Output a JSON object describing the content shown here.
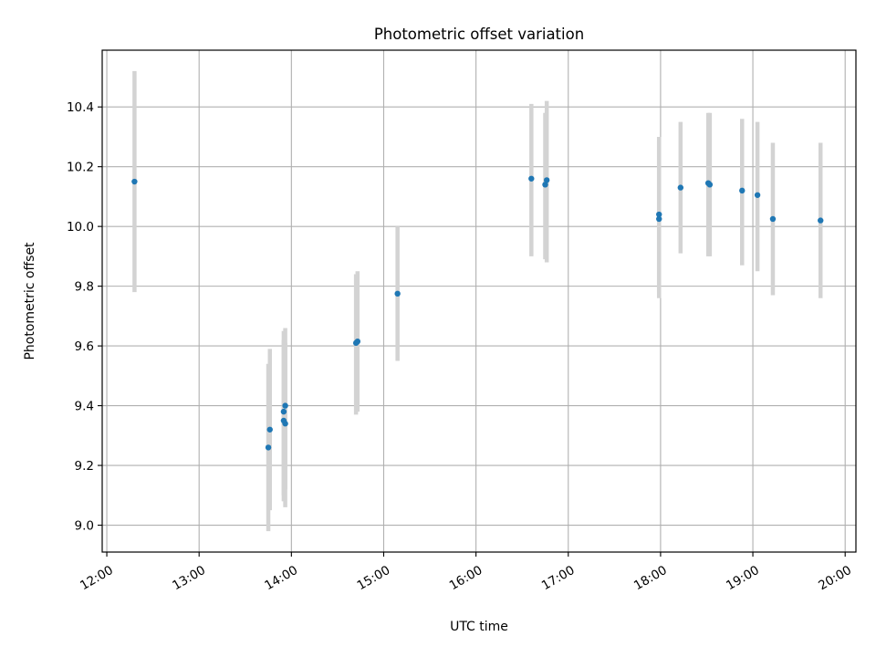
{
  "chart_data": {
    "type": "scatter",
    "title": "Photometric offset variation",
    "xlabel": "UTC time",
    "ylabel": "Photometric offset",
    "x_ticks": [
      "12:00",
      "13:00",
      "14:00",
      "15:00",
      "16:00",
      "17:00",
      "18:00",
      "19:00",
      "20:00"
    ],
    "y_ticks": [
      "9.0",
      "9.2",
      "9.4",
      "9.6",
      "9.8",
      "10.0",
      "10.2",
      "10.4"
    ],
    "xlim": [
      "11:57",
      "20:07"
    ],
    "ylim": [
      8.91,
      10.59
    ],
    "grid": true,
    "colors": {
      "point": "#1f77b4",
      "errorbar": "#d3d3d3",
      "grid": "#b0b0b0"
    },
    "points": [
      {
        "x": "12:18",
        "y": 10.15,
        "err_low": 9.78,
        "err_high": 10.52
      },
      {
        "x": "13:45",
        "y": 9.26,
        "err_low": 8.98,
        "err_high": 9.54
      },
      {
        "x": "13:46",
        "y": 9.32,
        "err_low": 9.05,
        "err_high": 9.59
      },
      {
        "x": "13:55",
        "y": 9.35,
        "err_low": 9.08,
        "err_high": 9.62
      },
      {
        "x": "13:55",
        "y": 9.38,
        "err_low": 9.1,
        "err_high": 9.65
      },
      {
        "x": "13:56",
        "y": 9.4,
        "err_low": 9.12,
        "err_high": 9.66
      },
      {
        "x": "13:56",
        "y": 9.34,
        "err_low": 9.06,
        "err_high": 9.61
      },
      {
        "x": "14:42",
        "y": 9.61,
        "err_low": 9.37,
        "err_high": 9.84
      },
      {
        "x": "14:43",
        "y": 9.615,
        "err_low": 9.38,
        "err_high": 9.85
      },
      {
        "x": "15:09",
        "y": 9.775,
        "err_low": 9.55,
        "err_high": 10.0
      },
      {
        "x": "16:36",
        "y": 10.16,
        "err_low": 9.9,
        "err_high": 10.41
      },
      {
        "x": "16:45",
        "y": 10.14,
        "err_low": 9.89,
        "err_high": 10.38
      },
      {
        "x": "16:46",
        "y": 10.155,
        "err_low": 9.88,
        "err_high": 10.42
      },
      {
        "x": "17:59",
        "y": 10.025,
        "err_low": 9.76,
        "err_high": 10.29
      },
      {
        "x": "17:59",
        "y": 10.04,
        "err_low": 9.78,
        "err_high": 10.3
      },
      {
        "x": "18:13",
        "y": 10.13,
        "err_low": 9.91,
        "err_high": 10.35
      },
      {
        "x": "18:31",
        "y": 10.145,
        "err_low": 9.9,
        "err_high": 10.38
      },
      {
        "x": "18:32",
        "y": 10.14,
        "err_low": 9.9,
        "err_high": 10.38
      },
      {
        "x": "18:53",
        "y": 10.12,
        "err_low": 9.87,
        "err_high": 10.36
      },
      {
        "x": "19:03",
        "y": 10.105,
        "err_low": 9.85,
        "err_high": 10.35
      },
      {
        "x": "19:13",
        "y": 10.025,
        "err_low": 9.77,
        "err_high": 10.28
      },
      {
        "x": "19:44",
        "y": 10.02,
        "err_low": 9.76,
        "err_high": 10.28
      }
    ]
  }
}
